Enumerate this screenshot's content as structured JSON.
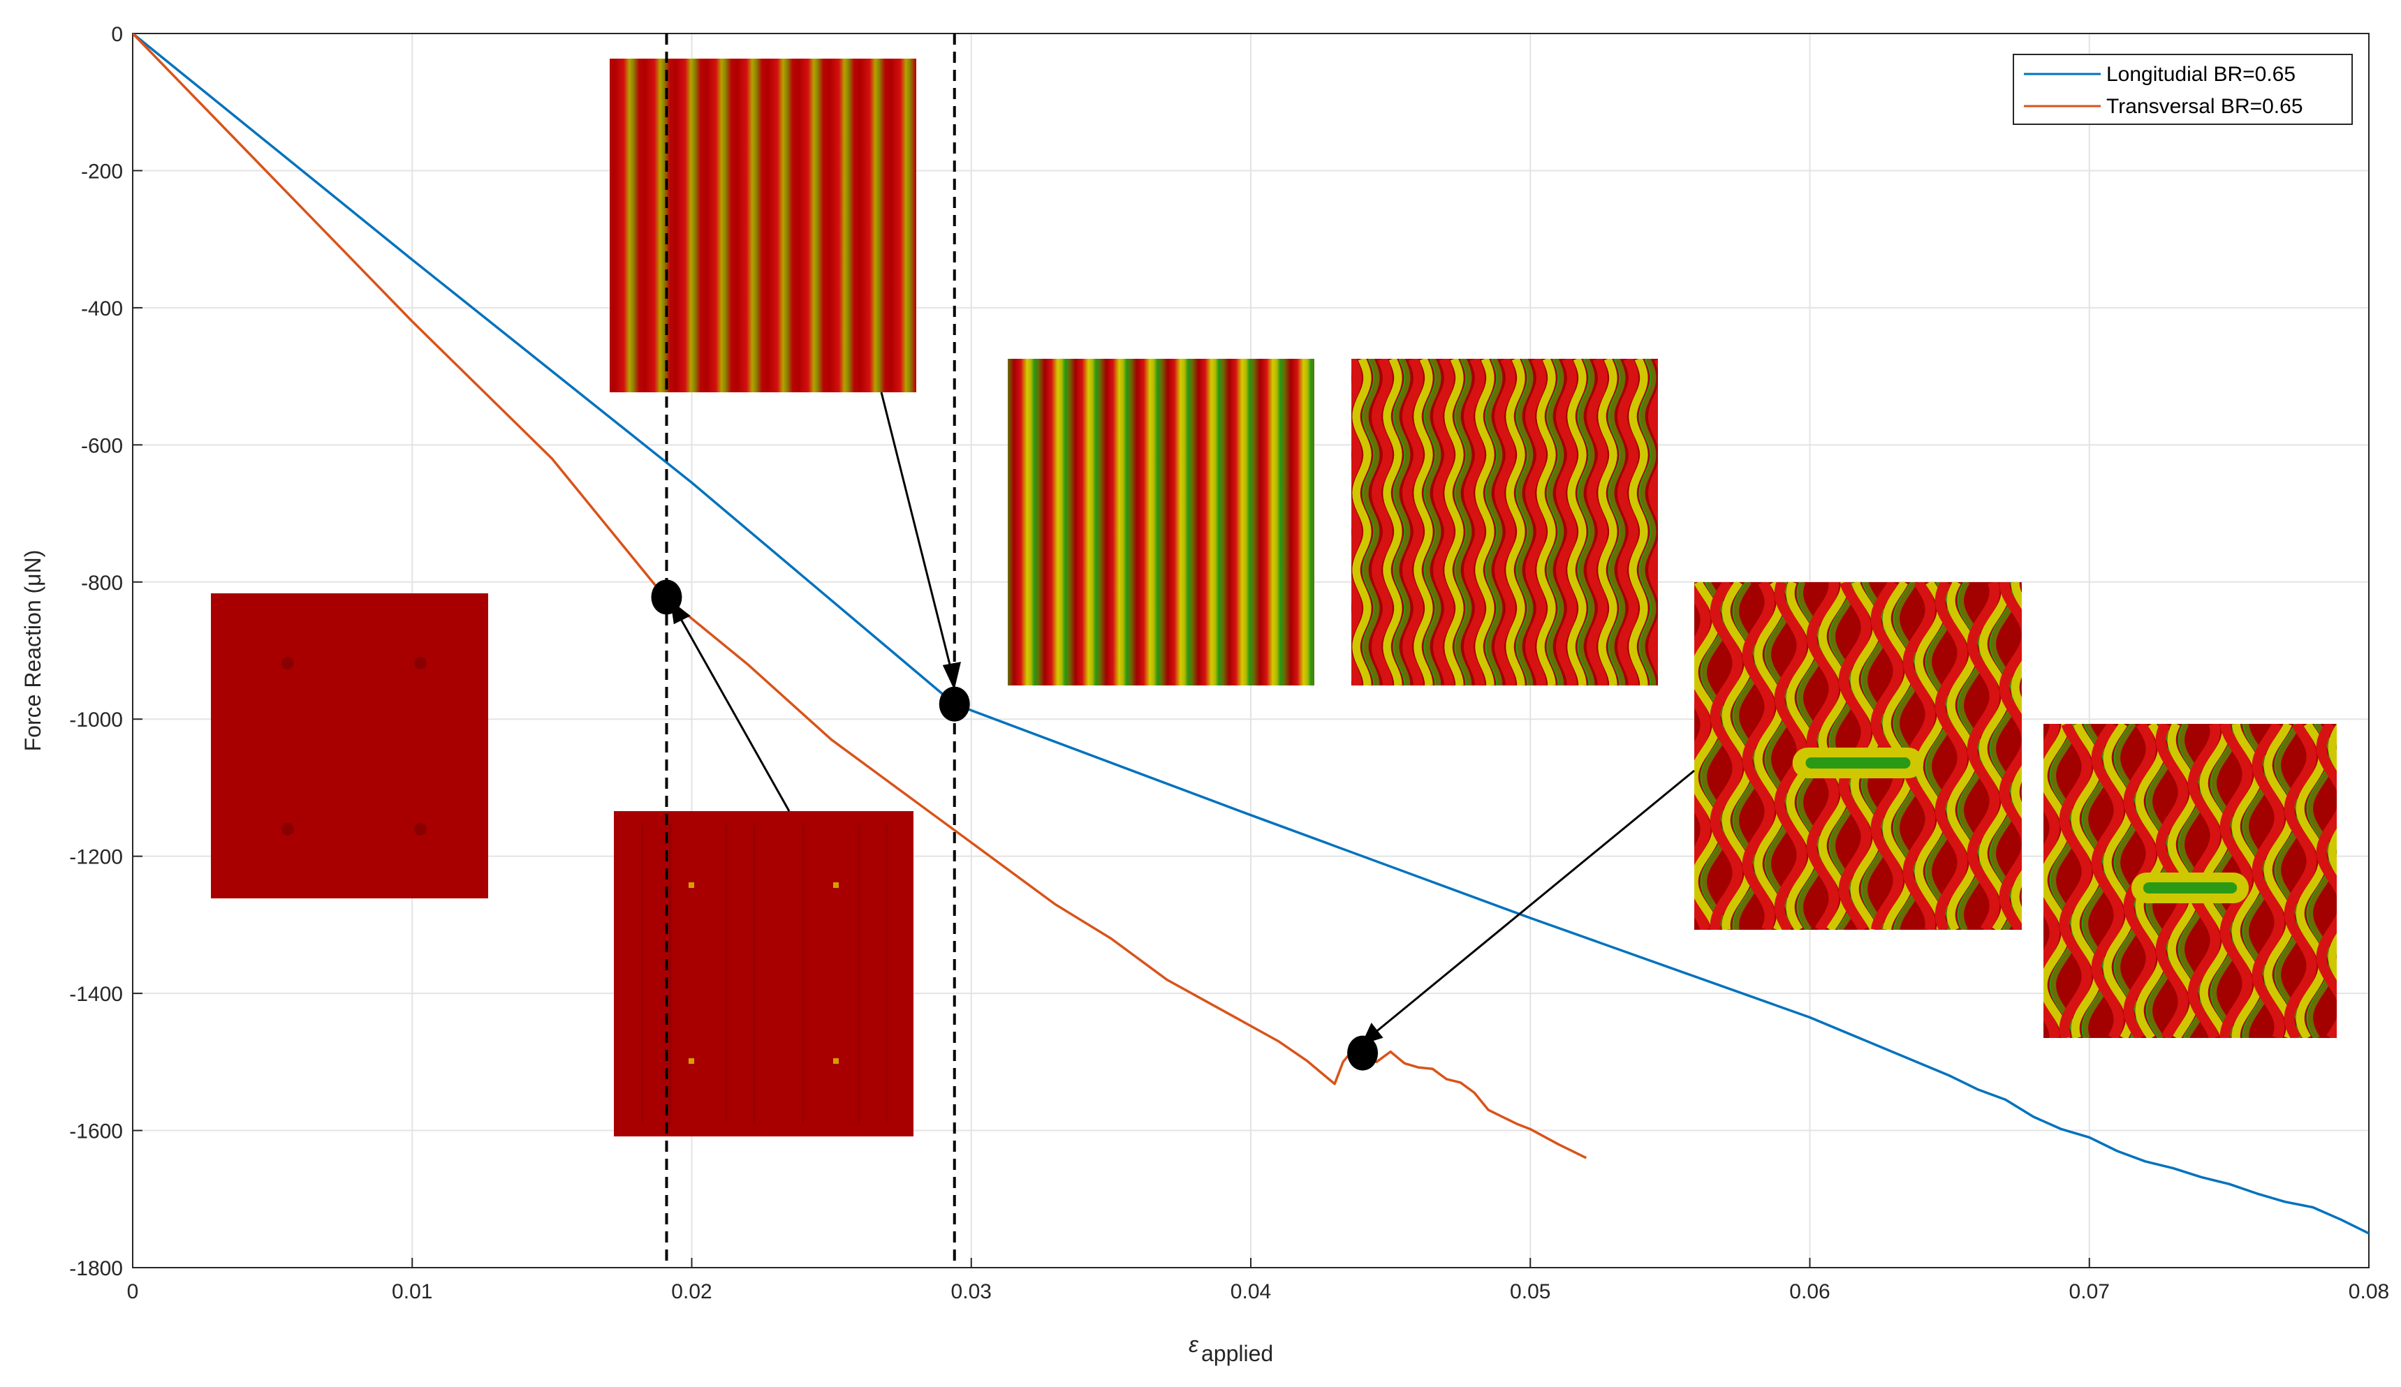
{
  "chart_data": {
    "type": "line",
    "xlabel_main": "ε",
    "xlabel_sub": "applied",
    "ylabel": "Force Reaction (μN)",
    "xlim": [
      0,
      0.08
    ],
    "ylim": [
      -1800,
      0
    ],
    "grid": true,
    "legend_position": "top-right",
    "x_ticks": [
      0,
      0.01,
      0.02,
      0.03,
      0.04,
      0.05,
      0.06,
      0.07,
      0.08
    ],
    "x_tick_labels": [
      "0",
      "0.01",
      "0.02",
      "0.03",
      "0.04",
      "0.05",
      "0.06",
      "0.07",
      "0.08"
    ],
    "y_ticks": [
      0,
      -200,
      -400,
      -600,
      -800,
      -1000,
      -1200,
      -1400,
      -1600,
      -1800
    ],
    "y_tick_labels": [
      "0",
      "-200",
      "-400",
      "-600",
      "-800",
      "-1000",
      "-1200",
      "-1400",
      "-1600",
      "-1800"
    ],
    "series": [
      {
        "name": "Longitudial BR=0.65",
        "color": "#0072BD",
        "points": [
          [
            0,
            0
          ],
          [
            0.01,
            -330
          ],
          [
            0.02,
            -655
          ],
          [
            0.0294,
            -978
          ],
          [
            0.04,
            -1140
          ],
          [
            0.05,
            -1290
          ],
          [
            0.06,
            -1435
          ],
          [
            0.065,
            -1520
          ],
          [
            0.066,
            -1540
          ],
          [
            0.067,
            -1555
          ],
          [
            0.068,
            -1580
          ],
          [
            0.069,
            -1598
          ],
          [
            0.07,
            -1610
          ],
          [
            0.071,
            -1630
          ],
          [
            0.072,
            -1645
          ],
          [
            0.073,
            -1655
          ],
          [
            0.074,
            -1668
          ],
          [
            0.075,
            -1678
          ],
          [
            0.076,
            -1692
          ],
          [
            0.077,
            -1704
          ],
          [
            0.078,
            -1712
          ],
          [
            0.079,
            -1730
          ],
          [
            0.08,
            -1750
          ]
        ]
      },
      {
        "name": "Transversal BR=0.65",
        "color": "#D95319",
        "points": [
          [
            0,
            0
          ],
          [
            0.005,
            -210
          ],
          [
            0.01,
            -420
          ],
          [
            0.015,
            -620
          ],
          [
            0.019,
            -820
          ],
          [
            0.022,
            -920
          ],
          [
            0.025,
            -1030
          ],
          [
            0.028,
            -1120
          ],
          [
            0.03,
            -1180
          ],
          [
            0.033,
            -1270
          ],
          [
            0.035,
            -1320
          ],
          [
            0.037,
            -1380
          ],
          [
            0.039,
            -1425
          ],
          [
            0.041,
            -1470
          ],
          [
            0.042,
            -1498
          ],
          [
            0.0425,
            -1515
          ],
          [
            0.043,
            -1532
          ],
          [
            0.0433,
            -1500
          ],
          [
            0.0437,
            -1480
          ],
          [
            0.044,
            -1490
          ],
          [
            0.0445,
            -1500
          ],
          [
            0.045,
            -1485
          ],
          [
            0.0455,
            -1502
          ],
          [
            0.046,
            -1508
          ],
          [
            0.0465,
            -1510
          ],
          [
            0.047,
            -1525
          ],
          [
            0.0475,
            -1530
          ],
          [
            0.048,
            -1545
          ],
          [
            0.0485,
            -1570
          ],
          [
            0.049,
            -1580
          ],
          [
            0.0495,
            -1590
          ],
          [
            0.05,
            -1598
          ],
          [
            0.051,
            -1620
          ],
          [
            0.052,
            -1640
          ]
        ]
      }
    ],
    "markers": [
      {
        "x": 0.0191,
        "y": -822
      },
      {
        "x": 0.0294,
        "y": -978
      },
      {
        "x": 0.044,
        "y": -1487
      }
    ],
    "dashed_vertical_lines": [
      0.0191,
      0.0294
    ]
  },
  "insets": [
    {
      "name": "inset-initial-flat",
      "pattern": "flat",
      "dots": 4
    },
    {
      "name": "inset-transversal-onset",
      "pattern": "flat",
      "dots": 4
    },
    {
      "name": "inset-longitudinal-onset",
      "pattern": "stripes-straight"
    },
    {
      "name": "inset-stripes-straight",
      "pattern": "stripes-straight"
    },
    {
      "name": "inset-stripes-wavy",
      "pattern": "stripes-wavy"
    },
    {
      "name": "inset-labyrinth-large",
      "pattern": "labyrinth"
    },
    {
      "name": "inset-labyrinth-small",
      "pattern": "labyrinth"
    }
  ],
  "colors": {
    "wrinkle_red": "#aa0000",
    "wrinkle_yellow": "#c8c400",
    "wrinkle_green": "#1aa81a",
    "axis": "#262626",
    "grid": "#dedede",
    "marker": "#000000"
  }
}
